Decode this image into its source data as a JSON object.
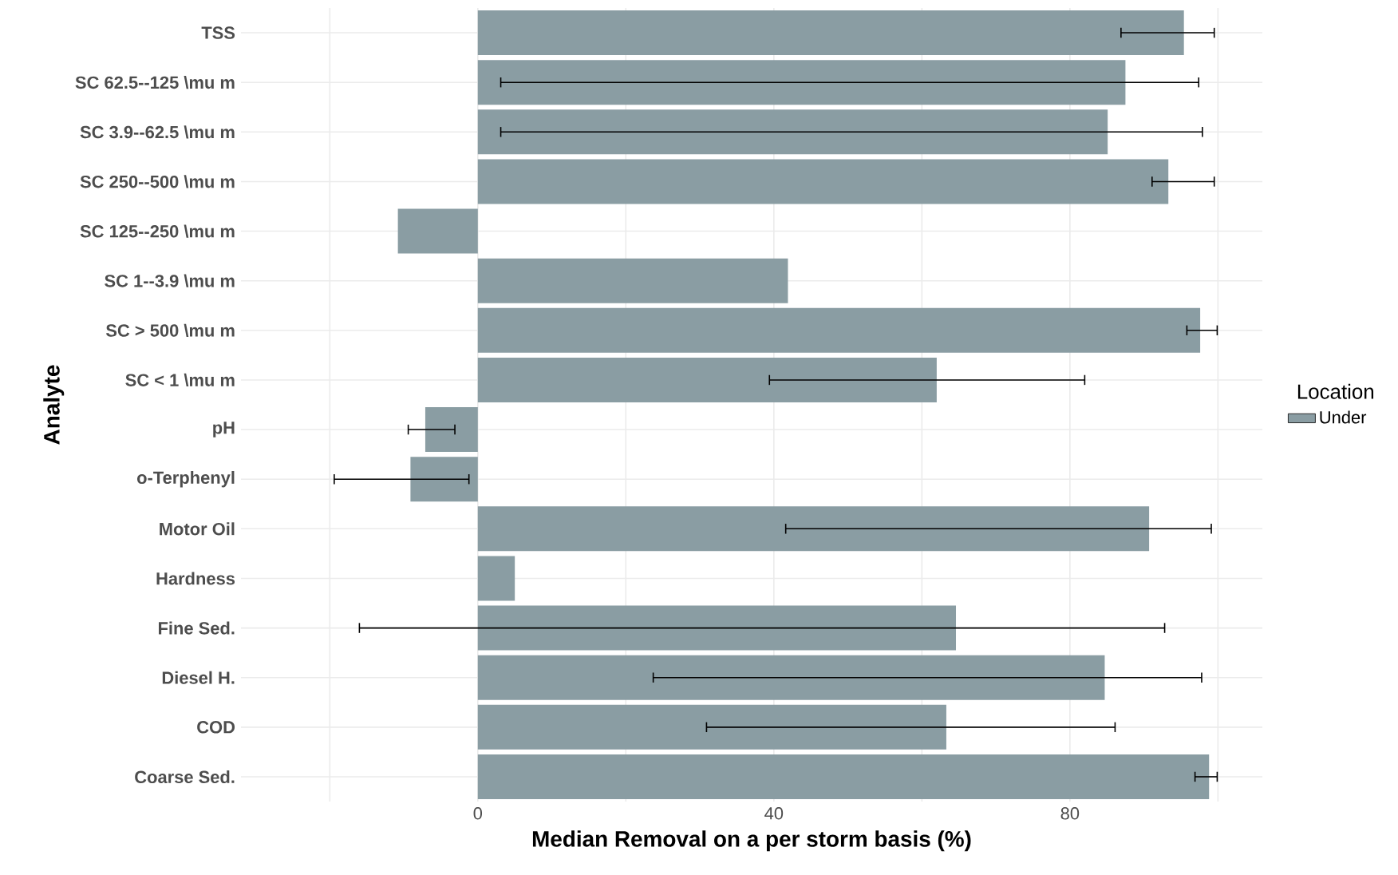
{
  "chart_data": {
    "type": "bar",
    "orientation": "horizontal",
    "xlabel": "Median Removal on a per storm basis (%)",
    "ylabel": "Analyte",
    "legend_title": "Location",
    "categories": [
      "TSS",
      "SC 62.5--125 \\mu m",
      "SC 3.9--62.5 \\mu m",
      "SC 250--500 \\mu m",
      "SC 125--250 \\mu m",
      "SC 1--3.9 \\mu m",
      "SC > 500 \\mu m",
      "SC < 1 \\mu m",
      "pH",
      "o-Terphenyl",
      "Motor Oil",
      "Hardness",
      "Fine Sed.",
      "Diesel H.",
      "COD",
      "Coarse Sed."
    ],
    "series": [
      {
        "name": "Under",
        "color": "#8a9da3",
        "values": [
          95.4,
          87.5,
          85.1,
          93.3,
          -10.8,
          41.9,
          97.6,
          62.0,
          -7.1,
          -9.1,
          90.7,
          5.0,
          64.6,
          84.7,
          63.3,
          98.8
        ],
        "errors": [
          [
            86.9,
            99.5
          ],
          [
            3.1,
            97.4
          ],
          [
            3.1,
            97.9
          ],
          [
            91.1,
            99.5
          ],
          null,
          null,
          [
            95.8,
            99.9
          ],
          [
            39.4,
            82.0
          ],
          [
            -9.4,
            -3.1
          ],
          [
            -19.4,
            -1.2
          ],
          [
            41.6,
            99.1
          ],
          null,
          [
            -16.0,
            92.8
          ],
          [
            23.7,
            97.8
          ],
          [
            30.9,
            86.1
          ],
          [
            96.9,
            99.9
          ]
        ]
      }
    ],
    "xlim": [
      -32,
      106
    ],
    "xticks": [
      {
        "value": -20,
        "label": null
      },
      0,
      {
        "value": 20,
        "label": null
      },
      40,
      {
        "value": 60,
        "label": null
      },
      80,
      {
        "value": 100,
        "label": null
      }
    ],
    "grid": true,
    "legend": "right"
  }
}
